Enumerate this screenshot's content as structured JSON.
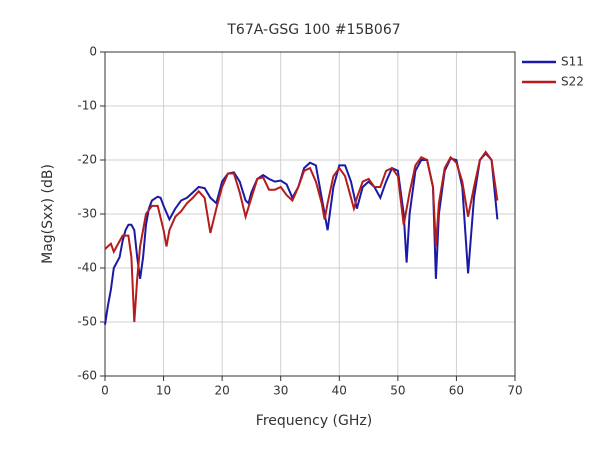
{
  "chart_data": {
    "type": "line",
    "title": "T67A-GSG 100 #15B067",
    "xlabel": "Frequency (GHz)",
    "ylabel": "Mag(Sxx) (dB)",
    "xlim": [
      0,
      70
    ],
    "ylim": [
      -60,
      0
    ],
    "xticks": [
      0,
      10,
      20,
      30,
      40,
      50,
      60,
      70
    ],
    "yticks": [
      0,
      -10,
      -20,
      -30,
      -40,
      -50,
      -60
    ],
    "grid": true,
    "legend": "outside-right",
    "series": [
      {
        "name": "S11",
        "color": "#1a1aa6",
        "x": [
          0,
          0.5,
          1,
          1.5,
          2,
          2.5,
          3,
          3.5,
          4,
          4.5,
          5,
          5.5,
          6,
          6.5,
          7,
          7.5,
          8,
          9,
          9.5,
          10,
          11,
          12,
          13,
          14,
          15,
          16,
          17,
          18,
          19,
          20,
          21,
          22,
          23,
          24,
          24.5,
          25,
          26,
          27,
          28,
          29,
          30,
          31,
          32,
          33,
          34,
          35,
          36,
          37,
          38,
          39,
          40,
          41,
          42,
          43,
          44,
          45,
          46,
          47,
          48,
          49,
          50,
          51,
          51.5,
          52,
          53,
          54,
          55,
          56,
          56.5,
          57,
          58,
          59,
          60,
          61,
          62,
          63,
          64,
          65,
          66,
          67
        ],
        "values": [
          -50.5,
          -47,
          -44,
          -40,
          -39,
          -38,
          -35,
          -33,
          -32,
          -32,
          -33,
          -38,
          -42,
          -38,
          -32,
          -29,
          -27.5,
          -26.8,
          -27,
          -28.5,
          -31,
          -29,
          -27.5,
          -27,
          -26,
          -25,
          -25.2,
          -27,
          -28,
          -24,
          -22.5,
          -22.3,
          -24,
          -27.5,
          -28,
          -26,
          -23.5,
          -22.8,
          -23.5,
          -24,
          -23.8,
          -24.5,
          -27,
          -25,
          -21.5,
          -20.5,
          -21,
          -27,
          -33,
          -25,
          -21,
          -21,
          -24,
          -29,
          -25,
          -24,
          -25,
          -27,
          -24,
          -21.5,
          -22,
          -30,
          -39,
          -30,
          -22,
          -20,
          -20,
          -25,
          -42,
          -30,
          -22,
          -19.7,
          -20,
          -25,
          -41,
          -27,
          -20,
          -18.8,
          -20,
          -31
        ]
      },
      {
        "name": "S22",
        "color": "#b51c1c",
        "x": [
          0,
          0.5,
          1,
          1.5,
          2,
          3,
          4,
          4.5,
          5,
          5.5,
          6,
          7,
          8,
          9,
          10,
          10.5,
          11,
          12,
          13,
          14,
          15,
          16,
          17,
          18,
          19,
          20,
          21,
          22,
          23,
          24,
          25,
          26,
          27,
          28,
          29,
          30,
          31,
          32,
          33,
          34,
          35,
          36,
          37,
          37.5,
          38,
          39,
          40,
          41,
          42,
          42.5,
          43,
          44,
          45,
          46,
          47,
          48,
          49,
          50,
          51,
          52,
          53,
          54,
          55,
          56,
          56.5,
          57,
          58,
          59,
          60,
          61,
          62,
          63,
          64,
          65,
          66,
          67
        ],
        "values": [
          -36.5,
          -36,
          -35.5,
          -37,
          -36,
          -34,
          -34,
          -38,
          -50,
          -42,
          -36,
          -30,
          -28.5,
          -28.5,
          -33,
          -36,
          -33,
          -30.5,
          -29.5,
          -28,
          -27,
          -25.8,
          -27,
          -33.5,
          -29,
          -25,
          -22.5,
          -22.5,
          -26,
          -30.5,
          -27,
          -23.5,
          -23.2,
          -25.5,
          -25.5,
          -25,
          -26.5,
          -27.5,
          -25,
          -22,
          -21.5,
          -24,
          -28,
          -31,
          -28,
          -23,
          -21.5,
          -23,
          -27,
          -29,
          -27,
          -24,
          -23.5,
          -25,
          -25,
          -22,
          -21.5,
          -23,
          -32,
          -26,
          -21,
          -19.5,
          -20,
          -25,
          -36,
          -28,
          -21.5,
          -19.5,
          -20.5,
          -24,
          -30.5,
          -25,
          -20,
          -18.5,
          -20,
          -27.5
        ]
      }
    ]
  }
}
